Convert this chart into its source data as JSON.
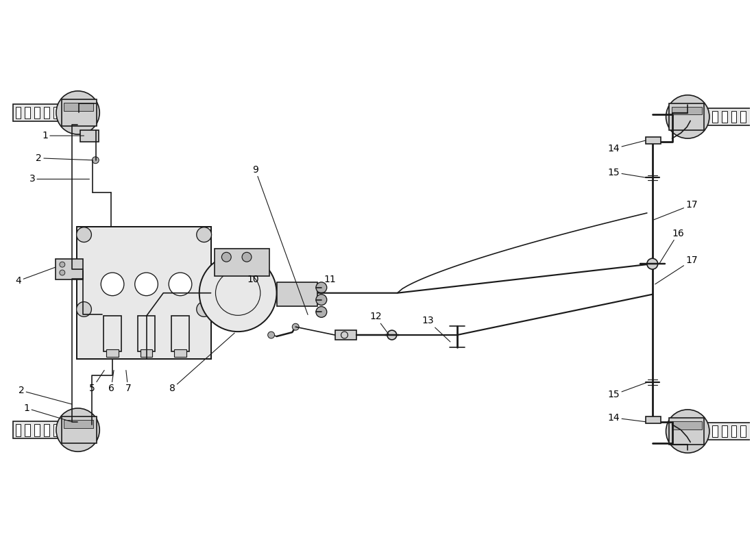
{
  "bg_color": "#ffffff",
  "line_color": "#1a1a1a",
  "lw": 1.2,
  "tlw": 2.0,
  "fill_light": "#e8e8e8",
  "fill_mid": "#d0d0d0",
  "fill_dark": "#b0b0b0"
}
